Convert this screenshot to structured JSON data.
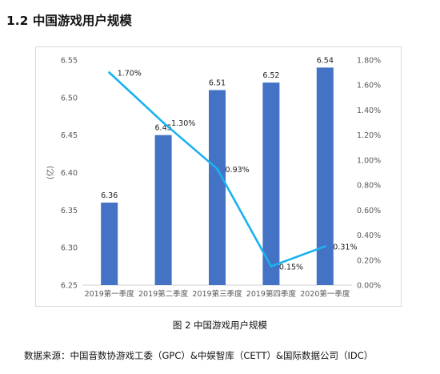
{
  "heading": "1.2  中国游戏用户规模",
  "caption": "图 2 中国游戏用户规模",
  "source": "数据来源：中国音数协游戏工委（GPC）&中娱智库（CETT）&国际数据公司（IDC）",
  "chart_data": {
    "type": "bar",
    "categories": [
      "2019第一季度",
      "2019第二季度",
      "2019第三季度",
      "2019第四季度",
      "2020第一季度"
    ],
    "series": [
      {
        "type": "bar",
        "axis": "left",
        "values": [
          6.36,
          6.45,
          6.51,
          6.52,
          6.54
        ],
        "labels": [
          "6.36",
          "6.45",
          "6.51",
          "6.52",
          "6.54"
        ],
        "color": "#4472c4"
      },
      {
        "type": "line",
        "axis": "right",
        "values": [
          1.7,
          1.3,
          0.93,
          0.15,
          0.31
        ],
        "labels": [
          "1.70%",
          "1.30%",
          "0.93%",
          "0.15%",
          "0.31%"
        ],
        "color": "#1ab1ef"
      }
    ],
    "ylabel": "(亿)",
    "ylim": [
      6.25,
      6.55
    ],
    "yticks": [
      "6.25",
      "6.30",
      "6.35",
      "6.40",
      "6.45",
      "6.50",
      "6.55"
    ],
    "y2lim": [
      0,
      1.8
    ],
    "y2ticks": [
      "0.00%",
      "0.20%",
      "0.40%",
      "0.60%",
      "0.80%",
      "1.00%",
      "1.20%",
      "1.40%",
      "1.60%",
      "1.80%"
    ],
    "grid": false,
    "legend": "none"
  }
}
